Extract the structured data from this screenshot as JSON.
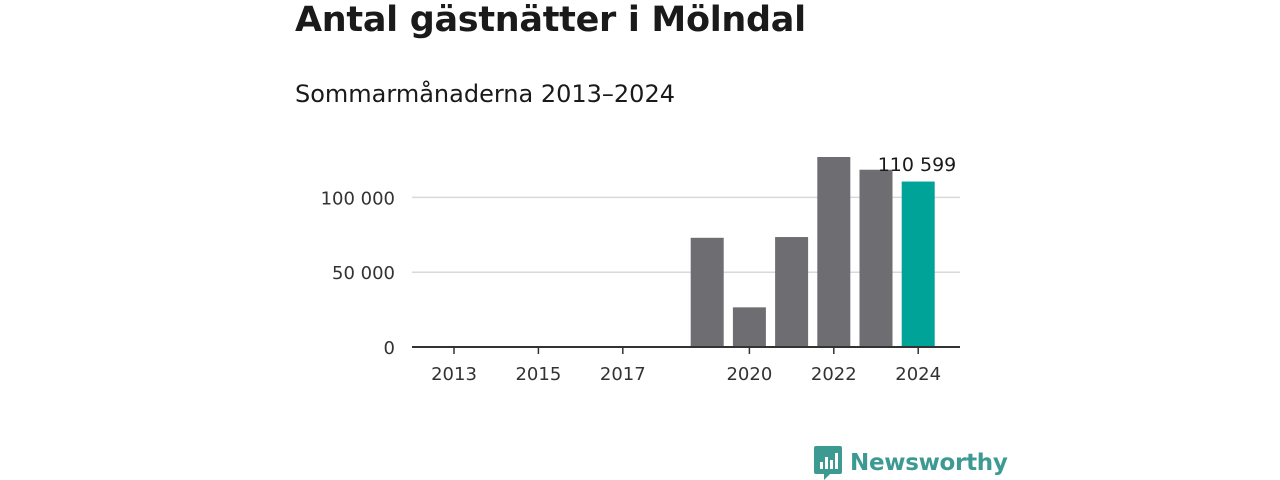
{
  "title": "Antal gästnätter i Mölndal",
  "subtitle": "Sommarmånaderna 2013–2024",
  "brand": {
    "name": "Newsworthy",
    "icon": "newsworthy-logo-icon",
    "color": "#3d9a92"
  },
  "chart_data": {
    "type": "bar",
    "categories": [
      "2013",
      "2014",
      "2015",
      "2016",
      "2017",
      "2018",
      "2019",
      "2020",
      "2021",
      "2022",
      "2023",
      "2024"
    ],
    "values": [
      null,
      null,
      null,
      null,
      null,
      null,
      73000,
      26500,
      73500,
      127000,
      118500,
      110599
    ],
    "highlight_index": 11,
    "bar_color": "#6d6d72",
    "highlight_color": "#00a398",
    "x_tick_labels": [
      "2013",
      "2015",
      "2017",
      "2020",
      "2022",
      "2024"
    ],
    "y_ticks": [
      0,
      50000,
      100000
    ],
    "y_tick_labels": [
      "0",
      "50 000",
      "100 000"
    ],
    "annotation": "110 599",
    "ylim": [
      0,
      130000
    ],
    "grid": true
  }
}
